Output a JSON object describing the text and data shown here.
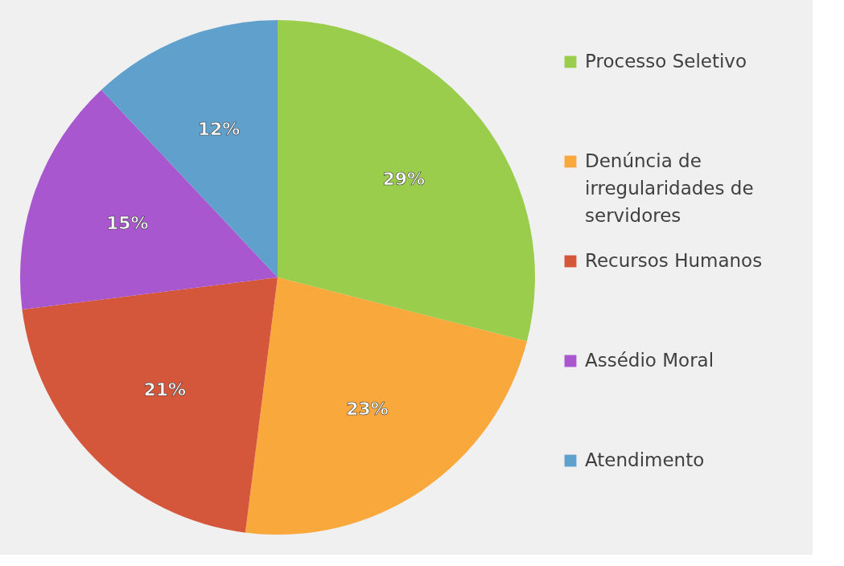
{
  "chart_data": {
    "type": "pie",
    "categories": [
      "Processo Seletivo",
      "Denúncia de irregularidades de servidores",
      "Recursos Humanos",
      "Assédio Moral",
      "Atendimento"
    ],
    "values": [
      29,
      23,
      21,
      15,
      12
    ],
    "colors": [
      "#9acd4c",
      "#f9a83c",
      "#d4573c",
      "#a857cf",
      "#60a0cc"
    ],
    "value_labels": [
      "29%",
      "23%",
      "21%",
      "15%",
      "12%"
    ],
    "legend": "right"
  }
}
